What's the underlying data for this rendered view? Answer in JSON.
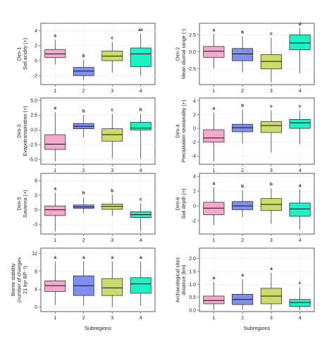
{
  "colors": {
    "1": "#f4a9cc",
    "2": "#7f8ff0",
    "3": "#cddb6a",
    "4": "#1cf2c4"
  },
  "chart_data": [
    {
      "type": "box",
      "ylabel_lines": [
        "Dim-1",
        "Soil acidity (+)"
      ],
      "ylim": [
        -3.2,
        5.0
      ],
      "yticks": [
        -2,
        0,
        2,
        4
      ],
      "ytick_labels": [
        "-2",
        "0",
        "2",
        "4"
      ],
      "xlabel": "",
      "categories": [
        "1",
        "2",
        "3",
        "4"
      ],
      "boxes": [
        {
          "group": "1",
          "min": -0.5,
          "q1": 0.4,
          "median": 0.9,
          "q3": 1.5,
          "max": 2.8,
          "letter": "a"
        },
        {
          "group": "2",
          "min": -2.6,
          "q1": -2.0,
          "median": -1.4,
          "q3": -0.9,
          "max": 0.1,
          "letter": "b"
        },
        {
          "group": "3",
          "min": -1.6,
          "q1": 0.0,
          "median": 0.6,
          "q3": 1.3,
          "max": 2.5,
          "letter": "c"
        },
        {
          "group": "4",
          "min": -2.0,
          "q1": -0.8,
          "median": 0.9,
          "q3": 1.7,
          "max": 3.6,
          "letter": "ac"
        }
      ]
    },
    {
      "type": "box",
      "ylabel_lines": [
        "Dim-2",
        "Mean diurnal range (-)"
      ],
      "ylim": [
        -4.8,
        4.2
      ],
      "yticks": [
        -2.5,
        0,
        2.5
      ],
      "ytick_labels": [
        "-2.5",
        "0.0",
        "2.5"
      ],
      "xlabel": "",
      "categories": [
        "1",
        "2",
        "3",
        "4"
      ],
      "boxes": [
        {
          "group": "1",
          "min": -2.4,
          "q1": -0.8,
          "median": 0.1,
          "q3": 0.8,
          "max": 2.6,
          "letter": "a"
        },
        {
          "group": "2",
          "min": -3.0,
          "q1": -1.3,
          "median": -0.3,
          "q3": 0.5,
          "max": 2.3,
          "letter": "b"
        },
        {
          "group": "3",
          "min": -4.5,
          "q1": -2.5,
          "median": -1.4,
          "q3": -0.4,
          "max": 2.1,
          "letter": "c"
        },
        {
          "group": "4",
          "min": -3.1,
          "q1": 0.3,
          "median": 1.3,
          "q3": 2.5,
          "max": 3.5,
          "letter": "d"
        }
      ]
    },
    {
      "type": "box",
      "ylabel_lines": [
        "Dim-3",
        "Evapotranspiration (+)"
      ],
      "ylim": [
        -5.8,
        5.4
      ],
      "yticks": [
        -5,
        -2.5,
        0,
        2.5,
        5
      ],
      "ytick_labels": [
        "-5.0",
        "-2.5",
        "0.0",
        "2.5",
        "5.0"
      ],
      "xlabel": "",
      "categories": [
        "1",
        "2",
        "3",
        "4"
      ],
      "boxes": [
        {
          "group": "1",
          "min": -5.3,
          "q1": -3.3,
          "median": -2.4,
          "q3": -0.8,
          "max": 3.0,
          "letter": "a"
        },
        {
          "group": "2",
          "min": -1.3,
          "q1": 0.2,
          "median": 0.6,
          "q3": 1.1,
          "max": 2.5,
          "letter": "b"
        },
        {
          "group": "3",
          "min": -4.8,
          "q1": -1.9,
          "median": -0.8,
          "q3": 0.2,
          "max": 2.7,
          "letter": "c"
        },
        {
          "group": "4",
          "min": -4.9,
          "q1": 0.0,
          "median": 0.3,
          "q3": 1.3,
          "max": 2.7,
          "letter": "b"
        }
      ]
    },
    {
      "type": "box",
      "ylabel_lines": [
        "Dim-4",
        "Precipitation seasonality (+)"
      ],
      "ylim": [
        -5.2,
        4.4
      ],
      "yticks": [
        -4,
        -2,
        0,
        2,
        4
      ],
      "ytick_labels": [
        "-4",
        "-2",
        "0",
        "2",
        "4"
      ],
      "xlabel": "",
      "categories": [
        "1",
        "2",
        "3",
        "4"
      ],
      "boxes": [
        {
          "group": "1",
          "min": -4.8,
          "q1": -2.0,
          "median": -1.4,
          "q3": -0.2,
          "max": 2.3,
          "letter": "a"
        },
        {
          "group": "2",
          "min": -2.2,
          "q1": -0.5,
          "median": 0.1,
          "q3": 0.6,
          "max": 2.7,
          "letter": "b"
        },
        {
          "group": "3",
          "min": -3.5,
          "q1": -0.6,
          "median": 0.4,
          "q3": 1.0,
          "max": 2.6,
          "letter": "c"
        },
        {
          "group": "4",
          "min": -2.3,
          "q1": 0.0,
          "median": 0.8,
          "q3": 1.3,
          "max": 2.6,
          "letter": "c"
        }
      ]
    },
    {
      "type": "box",
      "ylabel_lines": [
        "Dim-5",
        "Savanna (+)"
      ],
      "ylim": [
        -5.0,
        7.5
      ],
      "yticks": [
        -3,
        0,
        3,
        6
      ],
      "ytick_labels": [
        "-3",
        "0",
        "3",
        "6"
      ],
      "xlabel": "",
      "categories": [
        "1",
        "2",
        "3",
        "4"
      ],
      "boxes": [
        {
          "group": "1",
          "min": -4.5,
          "q1": -1.2,
          "median": 0.0,
          "q3": 0.8,
          "max": 3.5,
          "letter": "a"
        },
        {
          "group": "2",
          "min": -0.7,
          "q1": 0.3,
          "median": 0.6,
          "q3": 1.0,
          "max": 2.6,
          "letter": "b"
        },
        {
          "group": "3",
          "min": -1.3,
          "q1": 0.1,
          "median": 0.7,
          "q3": 1.2,
          "max": 3.1,
          "letter": "b"
        },
        {
          "group": "4",
          "min": -4.4,
          "q1": -1.6,
          "median": -1.0,
          "q3": -0.4,
          "max": 1.3,
          "letter": "c"
        }
      ]
    },
    {
      "type": "box",
      "ylabel_lines": [
        "Dim-6",
        "Soil depth (+)"
      ],
      "ylim": [
        -3.8,
        4.4
      ],
      "yticks": [
        -2,
        0,
        2,
        4
      ],
      "ytick_labels": [
        "-2",
        "0",
        "2",
        "4"
      ],
      "xlabel": "",
      "categories": [
        "1",
        "2",
        "3",
        "4"
      ],
      "boxes": [
        {
          "group": "1",
          "min": -2.6,
          "q1": -1.2,
          "median": -0.3,
          "q3": 0.5,
          "max": 2.5,
          "letter": "a"
        },
        {
          "group": "2",
          "min": -1.5,
          "q1": -0.5,
          "median": 0.0,
          "q3": 0.6,
          "max": 2.1,
          "letter": "b"
        },
        {
          "group": "3",
          "min": -2.4,
          "q1": -0.6,
          "median": 0.2,
          "q3": 1.0,
          "max": 2.4,
          "letter": "b"
        },
        {
          "group": "4",
          "min": -3.2,
          "q1": -1.4,
          "median": -0.4,
          "q3": 0.4,
          "max": 2.2,
          "letter": "a"
        }
      ]
    },
    {
      "type": "box",
      "ylabel_lines": [
        "Biome stability",
        "(number of changes",
        "21 kyr BP⁻¹)"
      ],
      "ylim": [
        -1.0,
        13.2
      ],
      "yticks": [
        0,
        4,
        8,
        12
      ],
      "ytick_labels": [
        "0",
        "4",
        "8",
        "12"
      ],
      "xlabel": "Subregions",
      "categories": [
        "1",
        "2",
        "3",
        "4"
      ],
      "boxes": [
        {
          "group": "1",
          "min": 0.5,
          "q1": 3.5,
          "median": 4.8,
          "q3": 5.9,
          "max": 10.2,
          "letter": "a"
        },
        {
          "group": "2",
          "min": 0.3,
          "q1": 2.6,
          "median": 4.8,
          "q3": 7.0,
          "max": 10.2,
          "letter": "a"
        },
        {
          "group": "3",
          "min": 0.0,
          "q1": 2.6,
          "median": 4.3,
          "q3": 6.4,
          "max": 10.2,
          "letter": "a"
        },
        {
          "group": "4",
          "min": 0.4,
          "q1": 3.1,
          "median": 5.2,
          "q3": 6.6,
          "max": 10.2,
          "letter": "a"
        }
      ]
    },
    {
      "type": "box",
      "ylabel_lines": [
        "Archaeological sites",
        "distance (km)"
      ],
      "ylim": [
        -0.05,
        2.4
      ],
      "yticks": [
        0,
        0.5,
        1.0,
        1.5,
        2.0
      ],
      "ytick_labels": [
        "0.0",
        "0.5",
        "1.0",
        "1.5",
        "2.0"
      ],
      "xlabel": "Subregions",
      "categories": [
        "1",
        "2",
        "3",
        "4"
      ],
      "boxes": [
        {
          "group": "1",
          "min": 0.02,
          "q1": 0.25,
          "median": 0.38,
          "q3": 0.55,
          "max": 1.1,
          "letter": "a"
        },
        {
          "group": "2",
          "min": 0.02,
          "q1": 0.22,
          "median": 0.42,
          "q3": 0.62,
          "max": 1.2,
          "letter": "a"
        },
        {
          "group": "3",
          "min": 0.02,
          "q1": 0.25,
          "median": 0.55,
          "q3": 0.85,
          "max": 1.45,
          "letter": "a"
        },
        {
          "group": "4",
          "min": 0.01,
          "q1": 0.15,
          "median": 0.3,
          "q3": 0.42,
          "max": 0.9,
          "letter": "c"
        }
      ]
    }
  ]
}
